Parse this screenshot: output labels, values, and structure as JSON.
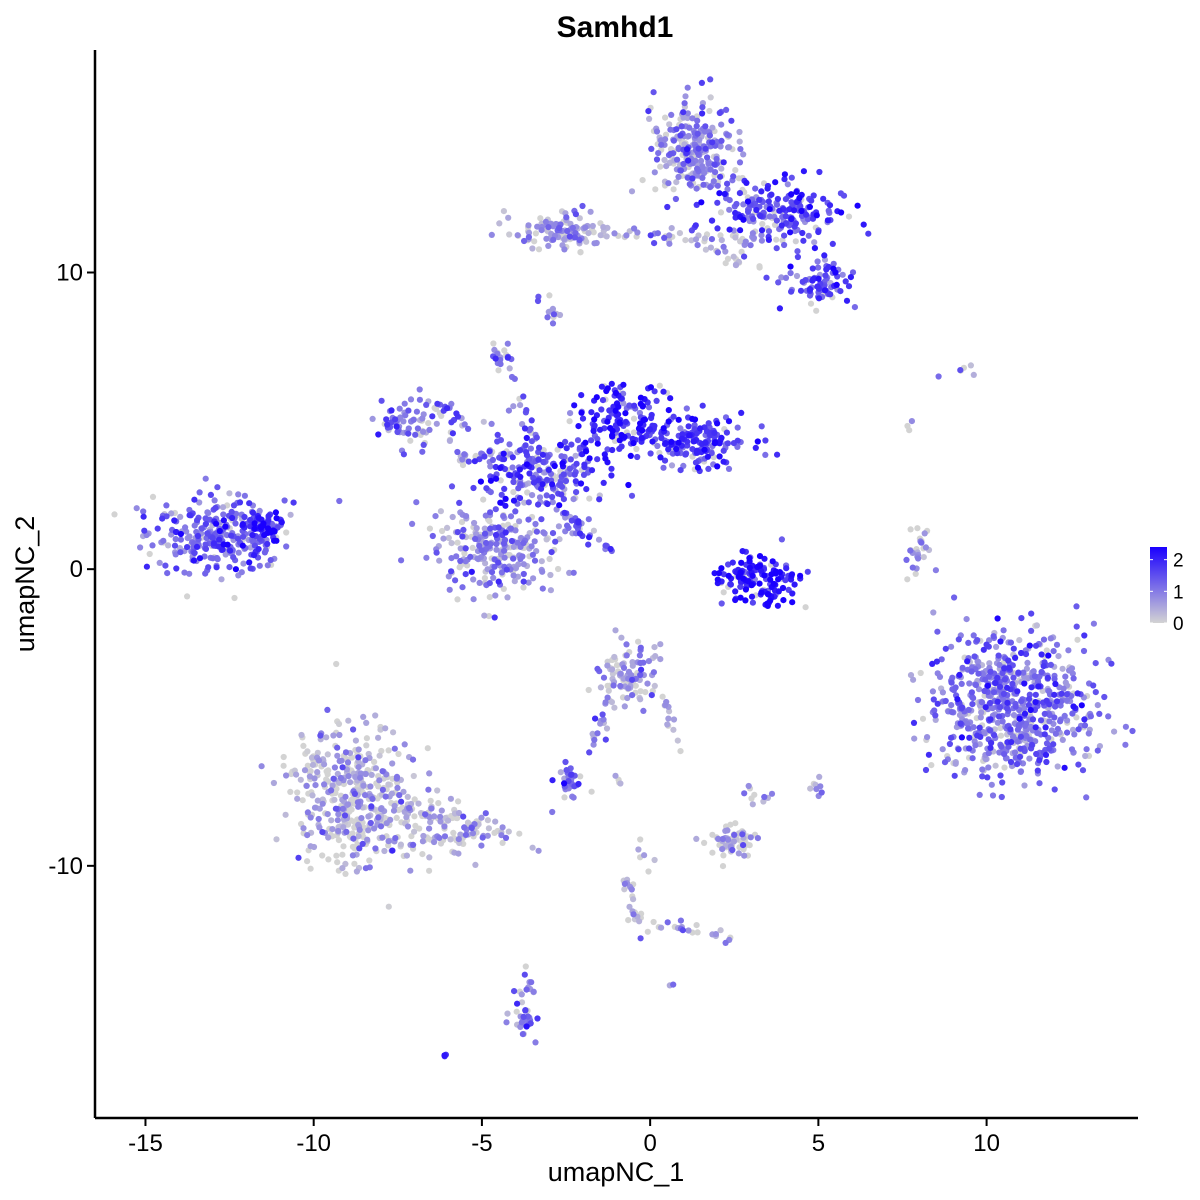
{
  "chart_data": {
    "type": "scatter",
    "title": "Samhd1",
    "xlabel": "umapNC_1",
    "ylabel": "umapNC_2",
    "xlim": [
      -16.5,
      14.5
    ],
    "ylim": [
      -18.5,
      17.5
    ],
    "x_ticks": [
      -15,
      -10,
      -5,
      0,
      5,
      10
    ],
    "x_tick_labels": [
      "-15",
      "-10",
      "-5",
      "0",
      "5",
      "10"
    ],
    "y_ticks": [
      -10,
      0,
      10
    ],
    "y_tick_labels": [
      "-10",
      "0",
      "10"
    ],
    "grid": false,
    "legend_position": "right",
    "color_scale": {
      "low_color": "#d3d3d3",
      "high_color": "#1a00ff",
      "min": 0,
      "max": 2.4,
      "breaks": [
        0,
        1,
        2
      ],
      "break_labels": [
        "0",
        "1",
        "2"
      ]
    },
    "points_description_clusters": [
      {
        "cx": -12.8,
        "cy": 1.1,
        "sx": 1.1,
        "sy": 0.7,
        "n": 320,
        "mean_expr": 1.2
      },
      {
        "cx": -11.5,
        "cy": 1.4,
        "sx": 0.4,
        "sy": 0.25,
        "n": 40,
        "mean_expr": 2.0
      },
      {
        "cx": -4.6,
        "cy": 0.6,
        "sx": 1.2,
        "sy": 0.9,
        "n": 260,
        "mean_expr": 0.8
      },
      {
        "cx": -3.2,
        "cy": 3.2,
        "sx": 1.2,
        "sy": 0.8,
        "n": 220,
        "mean_expr": 1.5
      },
      {
        "cx": -0.8,
        "cy": 5.0,
        "sx": 0.8,
        "sy": 0.8,
        "n": 160,
        "mean_expr": 1.9
      },
      {
        "cx": 1.5,
        "cy": 4.2,
        "sx": 0.9,
        "sy": 0.6,
        "n": 160,
        "mean_expr": 1.7
      },
      {
        "cx": -6.8,
        "cy": 5.0,
        "sx": 0.8,
        "sy": 0.5,
        "n": 90,
        "mean_expr": 0.9
      },
      {
        "cx": -4.4,
        "cy": 7.1,
        "sx": 0.2,
        "sy": 0.3,
        "n": 18,
        "mean_expr": 1.0
      },
      {
        "cx": 3.2,
        "cy": -0.4,
        "sx": 0.7,
        "sy": 0.5,
        "n": 150,
        "mean_expr": 2.0
      },
      {
        "cx": 1.3,
        "cy": 14.2,
        "sx": 0.7,
        "sy": 1.0,
        "n": 260,
        "mean_expr": 1.0
      },
      {
        "cx": 3.8,
        "cy": 12.0,
        "sx": 1.1,
        "sy": 0.6,
        "n": 200,
        "mean_expr": 1.6
      },
      {
        "cx": 5.0,
        "cy": 9.7,
        "sx": 0.6,
        "sy": 0.4,
        "n": 80,
        "mean_expr": 1.4
      },
      {
        "cx": -2.8,
        "cy": 11.4,
        "sx": 0.8,
        "sy": 0.4,
        "n": 110,
        "mean_expr": 0.6
      },
      {
        "cx": -2.9,
        "cy": 8.6,
        "sx": 0.1,
        "sy": 0.2,
        "n": 8,
        "mean_expr": 1.0
      },
      {
        "cx": 10.8,
        "cy": -4.6,
        "sx": 1.4,
        "sy": 1.5,
        "n": 700,
        "mean_expr": 1.1
      },
      {
        "cx": 8.0,
        "cy": 0.5,
        "sx": 0.2,
        "sy": 0.5,
        "n": 26,
        "mean_expr": 0.7
      },
      {
        "cx": -8.8,
        "cy": -7.7,
        "sx": 1.1,
        "sy": 1.4,
        "n": 420,
        "mean_expr": 0.5
      },
      {
        "cx": -6.0,
        "cy": -8.8,
        "sx": 1.1,
        "sy": 0.6,
        "n": 90,
        "mean_expr": 0.6
      },
      {
        "cx": -0.7,
        "cy": -3.6,
        "sx": 0.5,
        "sy": 0.6,
        "n": 100,
        "mean_expr": 0.5
      },
      {
        "cx": -2.4,
        "cy": -7.1,
        "sx": 0.3,
        "sy": 0.3,
        "n": 34,
        "mean_expr": 1.1
      },
      {
        "cx": 2.4,
        "cy": -9.2,
        "sx": 0.4,
        "sy": 0.35,
        "n": 70,
        "mean_expr": 0.3
      },
      {
        "cx": -3.8,
        "cy": -14.8,
        "sx": 0.2,
        "sy": 0.6,
        "n": 30,
        "mean_expr": 1.0
      },
      {
        "cx": 5.0,
        "cy": -7.3,
        "sx": 0.15,
        "sy": 0.2,
        "n": 8,
        "mean_expr": 0.7
      },
      {
        "cx": 3.4,
        "cy": -7.7,
        "sx": 0.1,
        "sy": 0.1,
        "n": 4,
        "mean_expr": 0.7
      },
      {
        "cx": -6.1,
        "cy": -16.4,
        "sx": 0.05,
        "sy": 0.05,
        "n": 3,
        "mean_expr": 1.8
      },
      {
        "cx": 0.6,
        "cy": -14.0,
        "sx": 0.05,
        "sy": 0.05,
        "n": 2,
        "mean_expr": 1.0
      },
      {
        "cx": 9.3,
        "cy": 6.7,
        "sx": 0.4,
        "sy": 0.15,
        "n": 6,
        "mean_expr": 0.2
      },
      {
        "cx": 7.7,
        "cy": 4.8,
        "sx": 0.05,
        "sy": 0.1,
        "n": 3,
        "mean_expr": 0.3
      }
    ],
    "points_description_segments": [
      {
        "x0": -3.0,
        "y0": 3.0,
        "x1": -4.2,
        "y1": 6.5,
        "n": 25,
        "mean_expr": 1.2
      },
      {
        "x0": -2.6,
        "y0": 1.9,
        "x1": -1.2,
        "y1": 0.6,
        "n": 30,
        "mean_expr": 1.3
      },
      {
        "x0": -4.0,
        "y0": 3.8,
        "x1": -5.8,
        "y1": 3.8,
        "n": 25,
        "mean_expr": 1.0
      },
      {
        "x0": -3.8,
        "y0": 11.5,
        "x1": 4.5,
        "y1": 11.0,
        "n": 60,
        "mean_expr": 0.5
      },
      {
        "x0": 1.3,
        "y0": 11.0,
        "x1": 3.5,
        "y1": 10.0,
        "n": 20,
        "mean_expr": 0.4
      },
      {
        "x0": -4.2,
        "y0": -9.1,
        "x1": -7.5,
        "y1": -8.0,
        "n": 40,
        "mean_expr": 0.4
      },
      {
        "x0": -1.2,
        "y0": -4.4,
        "x1": -1.8,
        "y1": -6.0,
        "n": 18,
        "mean_expr": 0.9
      },
      {
        "x0": 0.0,
        "y0": -3.6,
        "x1": 1.0,
        "y1": -6.2,
        "n": 15,
        "mean_expr": 0.6
      },
      {
        "x0": -0.7,
        "y0": -10.5,
        "x1": -0.4,
        "y1": -12.0,
        "n": 20,
        "mean_expr": 0.4
      },
      {
        "x0": -0.5,
        "y0": -11.8,
        "x1": 2.5,
        "y1": -12.5,
        "n": 25,
        "mean_expr": 0.6
      },
      {
        "x0": -3.7,
        "y0": -13.7,
        "x1": -3.6,
        "y1": -15.5,
        "n": 12,
        "mean_expr": 1.1
      },
      {
        "x0": -0.3,
        "y0": -9.2,
        "x1": 0.2,
        "y1": -10.4,
        "n": 6,
        "mean_expr": 0.4
      },
      {
        "x0": -1.1,
        "y0": -7.0,
        "x1": -0.9,
        "y1": -7.3,
        "n": 4,
        "mean_expr": 0.3
      },
      {
        "x0": 2.7,
        "y0": -7.4,
        "x1": 3.3,
        "y1": -7.8,
        "n": 5,
        "mean_expr": 0.6
      },
      {
        "x0": -2.6,
        "y0": 8.5,
        "x1": -3.2,
        "y1": 9.3,
        "n": 6,
        "mean_expr": 1.1
      }
    ]
  }
}
